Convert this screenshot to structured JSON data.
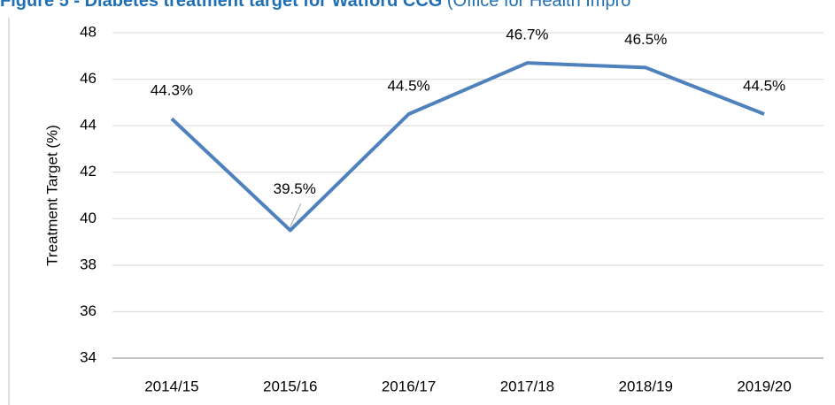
{
  "chart_data": {
    "type": "line",
    "title": "Figure 5 - Diabetes treatment target for Watford CCG",
    "title_source": "(Office for Health Impro",
    "y_label": "Treatment Target (%)",
    "categories": [
      "2014/15",
      "2015/16",
      "2016/17",
      "2017/18",
      "2018/19",
      "2019/20"
    ],
    "series": [
      {
        "name": "Treatment Target",
        "color": "#4f81bd",
        "values": [
          44.3,
          39.5,
          44.5,
          46.7,
          46.5,
          44.5
        ],
        "value_labels": [
          "44.3%",
          "39.5%",
          "44.5%",
          "46.7%",
          "46.5%",
          "44.5%"
        ]
      }
    ],
    "ylim": [
      34,
      48
    ],
    "yticks": [
      34,
      36,
      38,
      40,
      42,
      44,
      46,
      48
    ],
    "grid": true
  }
}
